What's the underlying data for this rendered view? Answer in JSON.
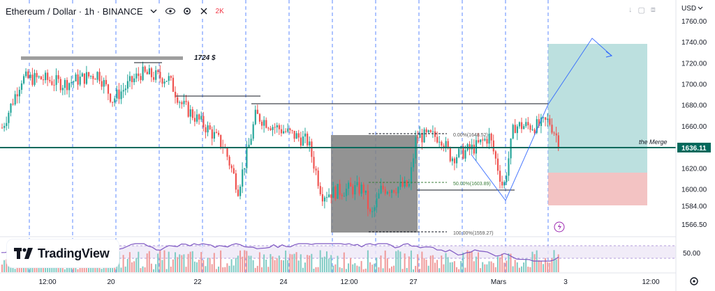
{
  "header": {
    "symbol_title": "Ethereum / Dollar · 1h · BINANCE",
    "badge_text": "2K",
    "icons": [
      "chevron-down-icon",
      "eye-icon",
      "gear-icon",
      "close-icon"
    ]
  },
  "currency_label": "USD",
  "price_axis": {
    "ticks": [
      "1760.00",
      "1740.00",
      "1720.00",
      "1700.00",
      "1680.00",
      "1660.00",
      "1640.00",
      "1620.00",
      "1600.00",
      "1584.00",
      "1566.50"
    ],
    "current_price": "1636.11",
    "accent": "#00695c"
  },
  "time_axis": {
    "labels": [
      "12:00",
      "20",
      "22",
      "24",
      "12:00",
      "27",
      "Mars",
      "3",
      "12:00"
    ]
  },
  "annotations": {
    "resistance_label": "1724 $",
    "merge_label": "the Merge",
    "fib_0": "0.00%(1648.52)",
    "fib_50": "50.00%(1603.89)",
    "fib_100": "100.00%(1559.27)"
  },
  "indicator": {
    "level_label": "50.00",
    "line_color": "#7e57c2"
  },
  "branding": {
    "logo_text": "TradingView"
  },
  "colors": {
    "up": "#26a69a",
    "down": "#ef5350",
    "target_zone": "#a5d6d4",
    "stop_zone": "#f0b4b4",
    "fib_box": "#808080"
  }
}
